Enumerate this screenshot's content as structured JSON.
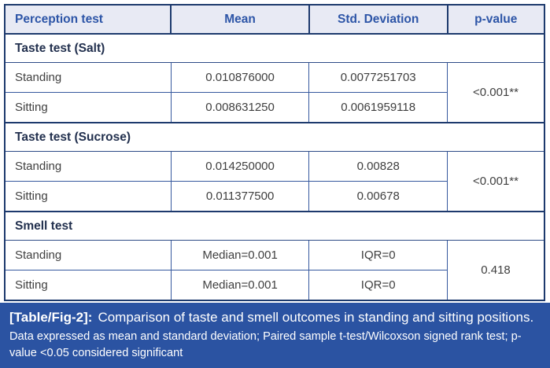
{
  "table": {
    "headers": [
      "Perception test",
      "Mean",
      "Std. Deviation",
      "p-value"
    ],
    "sections": [
      {
        "label": "Taste test (Salt)",
        "rows": [
          {
            "name": "Standing",
            "mean": "0.010876000",
            "sd": "0.0077251703"
          },
          {
            "name": "Sitting",
            "mean": "0.008631250",
            "sd": "0.0061959118"
          }
        ],
        "p_value": "<0.001**"
      },
      {
        "label": "Taste test (Sucrose)",
        "rows": [
          {
            "name": "Standing",
            "mean": "0.014250000",
            "sd": "0.00828"
          },
          {
            "name": "Sitting",
            "mean": "0.011377500",
            "sd": "0.00678"
          }
        ],
        "p_value": "<0.001**"
      },
      {
        "label": "Smell test",
        "rows": [
          {
            "name": "Standing",
            "mean": "Median=0.001",
            "sd": "IQR=0"
          },
          {
            "name": "Sitting",
            "mean": "Median=0.001",
            "sd": "IQR=0"
          }
        ],
        "p_value": "0.418"
      }
    ]
  },
  "caption": {
    "label": "[Table/Fig-2]:",
    "text": "Comparison of taste and smell outcomes in standing and sitting positions.",
    "footnote": "Data expressed as mean and standard deviation; Paired sample t-test/Wilcoxson signed rank test; p-value <0.05 considered significant"
  },
  "colors": {
    "header_bg": "#e8eaf4",
    "header_text": "#2d55a7",
    "border_dark": "#1d3a6d",
    "border_light": "#35589e",
    "caption_bg": "#2b53a2",
    "caption_text": "#ffffff",
    "body_text": "#3f3f3f",
    "section_text": "#22304e"
  }
}
